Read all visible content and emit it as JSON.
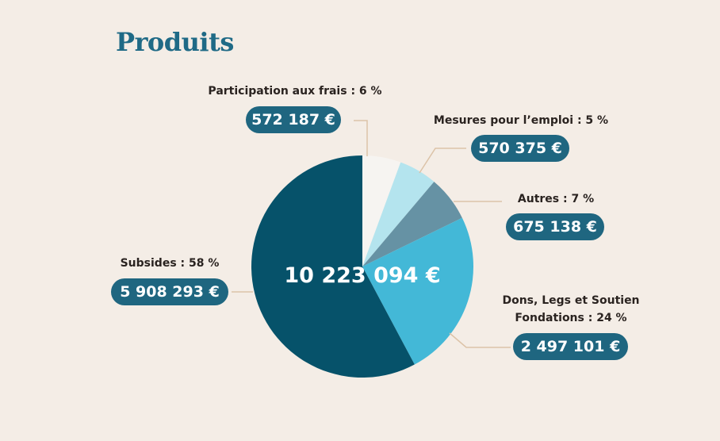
{
  "title": "Produits",
  "chart_data": {
    "type": "pie",
    "title": "Produits",
    "total_label": "10 223 094 €",
    "start": "top",
    "direction": "clockwise",
    "slices": [
      {
        "label": "Participation aux frais : 6 %",
        "percent": 6,
        "value": 572187,
        "value_label": "572 187 €",
        "color": "#f6f4f1"
      },
      {
        "label": "Mesures pour l’emploi : 5 %",
        "percent": 5,
        "value": 570375,
        "value_label": "570 375 €",
        "color": "#b4e4ee"
      },
      {
        "label": "Autres : 7 %",
        "percent": 7,
        "value": 675138,
        "value_label": "675 138 €",
        "color": "#6692a4"
      },
      {
        "label_line1": "Dons, Legs et Soutien",
        "label_line2": "Fondations : 24 %",
        "percent": 24,
        "value": 2497101,
        "value_label": "2 497 101 €",
        "color": "#43b8d7"
      },
      {
        "label": "Subsides  : 58 %",
        "percent": 58,
        "value": 5908293,
        "value_label": "5 908 293 €",
        "color": "#06526a"
      }
    ]
  }
}
